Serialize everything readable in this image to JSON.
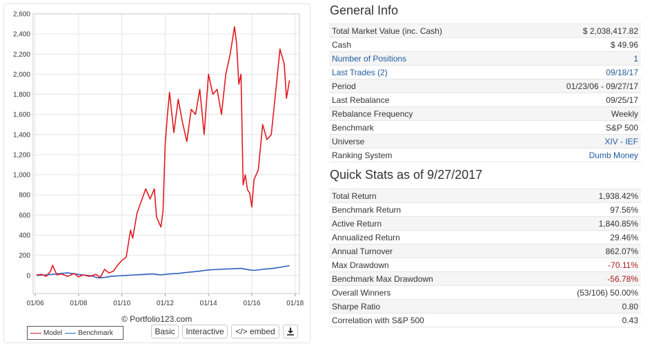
{
  "chart_data": {
    "type": "line",
    "xlabel": "",
    "ylabel": "",
    "x_ticks": [
      "01/06",
      "01/08",
      "01/10",
      "01/12",
      "01/14",
      "01/16",
      "01/18"
    ],
    "x_tick_years": [
      2006,
      2008,
      2010,
      2012,
      2014,
      2016,
      2018
    ],
    "xlim": [
      2005.9,
      2018.2
    ],
    "y_ticks": [
      "0",
      "200",
      "400",
      "600",
      "800",
      "1,000",
      "1,200",
      "1,400",
      "1,600",
      "1,800",
      "2,000",
      "2,200",
      "2,400",
      "2,600"
    ],
    "y_tick_values": [
      0,
      200,
      400,
      600,
      800,
      1000,
      1200,
      1400,
      1600,
      1800,
      2000,
      2200,
      2400,
      2600
    ],
    "ylim": [
      -180,
      2600
    ],
    "grid": true,
    "legend_position": "bottom-left",
    "series": [
      {
        "name": "Model",
        "color": "#e0191f",
        "x": [
          2006.06,
          2006.3,
          2006.5,
          2006.7,
          2006.8,
          2007.0,
          2007.2,
          2007.5,
          2007.8,
          2008.0,
          2008.2,
          2008.5,
          2008.8,
          2009.0,
          2009.2,
          2009.4,
          2009.6,
          2009.8,
          2010.0,
          2010.2,
          2010.4,
          2010.5,
          2010.7,
          2010.9,
          2011.1,
          2011.3,
          2011.5,
          2011.6,
          2011.8,
          2011.9,
          2012.0,
          2012.1,
          2012.2,
          2012.4,
          2012.6,
          2012.8,
          2013.0,
          2013.2,
          2013.4,
          2013.6,
          2013.8,
          2014.0,
          2014.2,
          2014.4,
          2014.6,
          2014.8,
          2015.0,
          2015.2,
          2015.3,
          2015.4,
          2015.5,
          2015.6,
          2015.7,
          2015.8,
          2015.9,
          2016.0,
          2016.1,
          2016.3,
          2016.5,
          2016.7,
          2016.9,
          2017.1,
          2017.3,
          2017.5,
          2017.6,
          2017.74
        ],
        "values": [
          5,
          10,
          -10,
          40,
          100,
          5,
          15,
          -10,
          20,
          -15,
          5,
          -10,
          10,
          -20,
          60,
          25,
          40,
          100,
          150,
          180,
          450,
          370,
          620,
          740,
          860,
          760,
          860,
          580,
          480,
          640,
          1300,
          1590,
          1820,
          1420,
          1750,
          1520,
          1330,
          1650,
          1600,
          1850,
          1400,
          2000,
          1800,
          1850,
          1600,
          2000,
          2200,
          2470,
          2300,
          1900,
          2000,
          900,
          1000,
          850,
          820,
          680,
          950,
          1050,
          1500,
          1350,
          1400,
          1820,
          2250,
          2100,
          1760,
          1938
        ]
      },
      {
        "name": "Benchmark",
        "color": "#2d5fbf",
        "x": [
          2006.06,
          2006.5,
          2007.0,
          2007.5,
          2007.8,
          2008.2,
          2008.6,
          2008.9,
          2009.2,
          2009.5,
          2009.8,
          2010.2,
          2010.6,
          2011.0,
          2011.4,
          2011.8,
          2012.2,
          2012.6,
          2013.0,
          2013.5,
          2014.0,
          2014.5,
          2015.0,
          2015.5,
          2015.9,
          2016.1,
          2016.5,
          2017.0,
          2017.5,
          2017.74
        ],
        "values": [
          0,
          5,
          15,
          25,
          15,
          5,
          -5,
          -25,
          -20,
          -10,
          -5,
          0,
          5,
          10,
          15,
          5,
          15,
          20,
          30,
          40,
          55,
          60,
          65,
          70,
          55,
          50,
          60,
          70,
          88,
          97.56
        ]
      }
    ]
  },
  "copyright": "© Portfolio123.com",
  "legend": [
    "Model",
    "Benchmark"
  ],
  "buttons": {
    "basic": "Basic",
    "interactive": "Interactive",
    "embed": "</> embed",
    "download_icon": "download-icon"
  },
  "general_info": {
    "title": "General Info",
    "rows": [
      {
        "label": "Total Market Value (inc. Cash)",
        "value": "$ 2,038,417.82"
      },
      {
        "label": "Cash",
        "value": "$ 49.96"
      },
      {
        "label": "Number of Positions",
        "value": "1"
      },
      {
        "label": "Last Trades (2)",
        "value": "09/18/17"
      },
      {
        "label": "Period",
        "value": "01/23/06 - 09/27/17"
      },
      {
        "label": "Last Rebalance",
        "value": "09/25/17"
      },
      {
        "label": "Rebalance Frequency",
        "value": "Weekly"
      },
      {
        "label": "Benchmark",
        "value": "S&P 500"
      },
      {
        "label": "Universe",
        "value": "XIV - IEF"
      },
      {
        "label": "Ranking System",
        "value": "Dumb Money"
      }
    ]
  },
  "quick_stats": {
    "title": "Quick Stats as of 9/27/2017",
    "rows": [
      {
        "label": "Total Return",
        "value": "1,938.42%"
      },
      {
        "label": "Benchmark Return",
        "value": "97.56%"
      },
      {
        "label": "Active Return",
        "value": "1,840.85%"
      },
      {
        "label": "Annualized Return",
        "value": "29.46%"
      },
      {
        "label": "Annual Turnover",
        "value": "862.07%"
      },
      {
        "label": "Max Drawdown",
        "value": "-70.11%"
      },
      {
        "label": "Benchmark Max Drawdown",
        "value": "-56.78%"
      },
      {
        "label": "Overall Winners",
        "value": "(53/106) 50.00%"
      },
      {
        "label": "Sharpe Ratio",
        "value": "0.80"
      },
      {
        "label": "Correlation with S&P 500",
        "value": "0.43"
      }
    ]
  },
  "colors": {
    "link": "#1f5a9e",
    "negative": "#a81818"
  }
}
